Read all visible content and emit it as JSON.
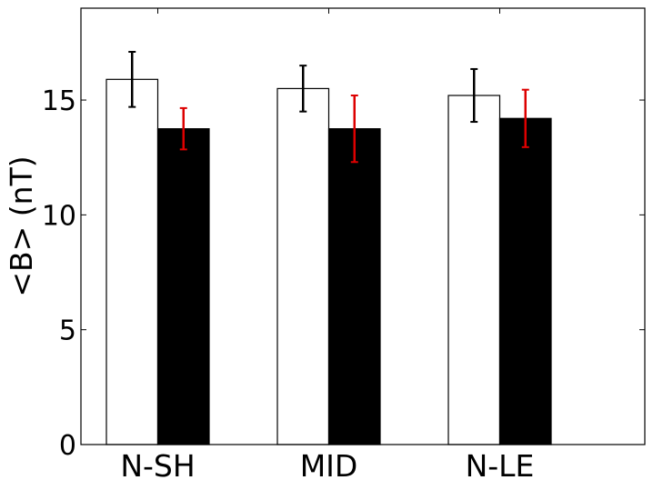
{
  "chart_data": {
    "type": "bar",
    "categories": [
      "N-SH",
      "MID",
      "N-LE"
    ],
    "series": [
      {
        "values": [
          15.9,
          15.5,
          15.2
        ],
        "errors": [
          1.2,
          1.0,
          1.15
        ],
        "fill_color": "#ffffff",
        "edge_color": "#000000",
        "error_color": "#000000"
      },
      {
        "values": [
          13.75,
          13.75,
          14.2
        ],
        "errors": [
          0.9,
          1.45,
          1.25
        ],
        "fill_color": "#000000",
        "edge_color": "#000000",
        "error_color": "#dd0000"
      }
    ],
    "xlabel": "",
    "ylabel": "<B> (nT)",
    "ylim": [
      0,
      19
    ],
    "yticks": [
      0,
      5,
      10,
      15
    ],
    "grid": false,
    "legend": "none"
  }
}
